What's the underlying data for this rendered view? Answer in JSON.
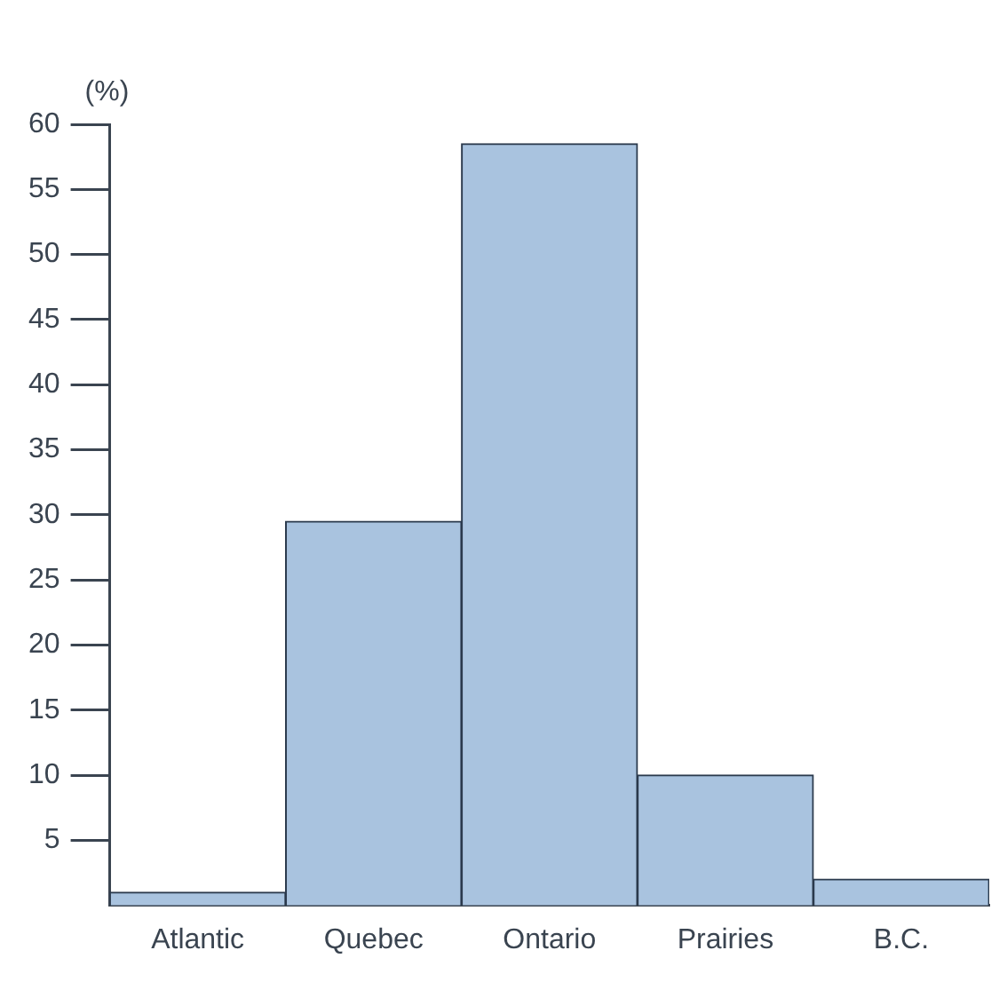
{
  "chart_data": {
    "type": "bar",
    "ylabel": "(%)",
    "categories": [
      "Atlantic",
      "Quebec",
      "Ontario",
      "Prairies",
      "B.C."
    ],
    "values": [
      1,
      29.5,
      58.5,
      10,
      2
    ],
    "color": "#a9c3df",
    "ylim": [
      0,
      60
    ],
    "yticks": [
      5,
      10,
      15,
      20,
      25,
      30,
      35,
      40,
      45,
      50,
      55,
      60
    ],
    "grid": false,
    "legend": false
  }
}
